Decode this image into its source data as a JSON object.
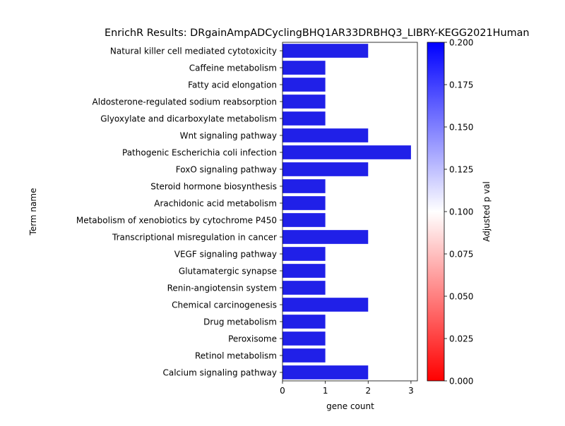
{
  "chart_data": {
    "type": "bar",
    "orientation": "horizontal",
    "title": "EnrichR Results: DRgainAmpADCyclingBHQ1AR33DRBHQ3_LIBRY-KEGG2021Human",
    "xlabel": "gene count",
    "ylabel": "Term name",
    "xlim": [
      0,
      3.15
    ],
    "xticks": [
      "0",
      "1",
      "2",
      "3"
    ],
    "categories": [
      "Natural killer cell mediated cytotoxicity",
      "Caffeine metabolism",
      "Fatty acid elongation",
      "Aldosterone-regulated sodium reabsorption",
      "Glyoxylate and dicarboxylate metabolism",
      "Wnt signaling pathway",
      "Pathogenic Escherichia coli infection",
      "FoxO signaling pathway",
      "Steroid hormone biosynthesis",
      "Arachidonic acid metabolism",
      "Metabolism of xenobiotics by cytochrome P450",
      "Transcriptional misregulation in cancer",
      "VEGF signaling pathway",
      "Glutamatergic synapse",
      "Renin-angiotensin system",
      "Chemical carcinogenesis",
      "Drug metabolism",
      "Peroxisome",
      "Retinol metabolism",
      "Calcium signaling pathway"
    ],
    "values": [
      2,
      1,
      1,
      1,
      1,
      2,
      3,
      2,
      1,
      1,
      1,
      2,
      1,
      1,
      1,
      2,
      1,
      1,
      1,
      2
    ],
    "bar_color": "#2020e8",
    "colorbar": {
      "label": "Adjusted p val",
      "range": [
        0,
        0.2
      ],
      "ticks": [
        "0.000",
        "0.025",
        "0.050",
        "0.075",
        "0.100",
        "0.125",
        "0.150",
        "0.175",
        "0.200"
      ],
      "colors": [
        "#ff0000",
        "#ffffff",
        "#0000ff"
      ]
    },
    "grid": false,
    "legend": "colorbar-right"
  }
}
